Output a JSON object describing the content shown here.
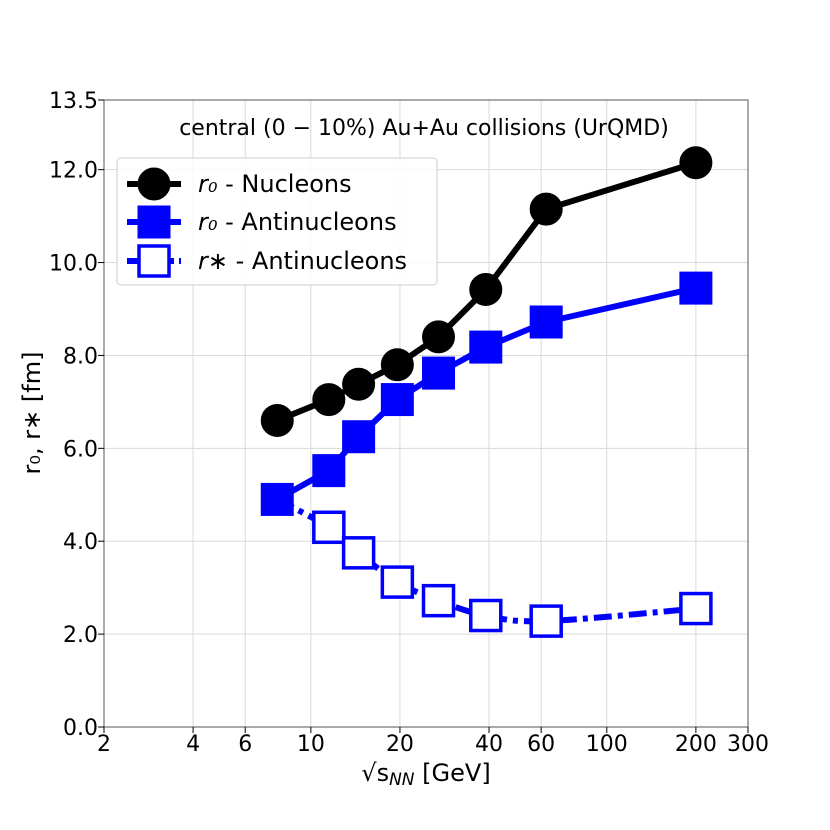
{
  "chart_data": {
    "type": "line",
    "title": "central (0 − 10%) Au+Au collisions (UrQMD)",
    "xlabel": "√s",
    "xlabel_sub": "NN",
    "xlabel_unit": "[GeV]",
    "ylabel": "r₀, r∗ [fm]",
    "xscale": "log",
    "xlim": [
      2,
      300
    ],
    "ylim": [
      0,
      13.5
    ],
    "xticks": [
      2,
      4,
      6,
      10,
      20,
      40,
      60,
      100,
      200,
      300
    ],
    "xtick_labels": [
      "2",
      "4",
      "6",
      "10",
      "20",
      "40",
      "60",
      "100",
      "200",
      "300"
    ],
    "yticks": [
      0,
      2,
      4,
      6,
      8,
      10,
      12,
      13.5
    ],
    "ytick_labels": [
      "0.0",
      "2.0",
      "4.0",
      "6.0",
      "8.0",
      "10.0",
      "12.0",
      "13.5"
    ],
    "grid": true,
    "legend_position": "upper-left",
    "series": [
      {
        "name": "r₀ - Nucleons",
        "legend_symbol": "r₀",
        "legend_rest": " - Nucleons",
        "color": "#000000",
        "line": "solid",
        "marker": "circle",
        "marker_fill": "filled",
        "x": [
          7.7,
          11.5,
          14.5,
          19.6,
          27,
          39,
          62.4,
          200
        ],
        "y": [
          6.6,
          7.05,
          7.38,
          7.8,
          8.4,
          9.42,
          11.15,
          12.15
        ]
      },
      {
        "name": "r₀ - Antinucleons",
        "legend_symbol": "r₀",
        "legend_rest": " - Antinucleons",
        "color": "#0000ff",
        "line": "solid",
        "marker": "square",
        "marker_fill": "filled",
        "x": [
          7.7,
          11.5,
          14.5,
          19.6,
          27,
          39,
          62.4,
          200
        ],
        "y": [
          4.9,
          5.52,
          6.25,
          7.05,
          7.62,
          8.18,
          8.72,
          9.45
        ]
      },
      {
        "name": "r∗ - Antinucleons",
        "legend_symbol": "r∗",
        "legend_rest": " - Antinucleons",
        "color": "#0000ff",
        "line": "dashdot",
        "marker": "square",
        "marker_fill": "open",
        "x": [
          11.5,
          14.5,
          19.6,
          27,
          39,
          62.4,
          200
        ],
        "y": [
          4.3,
          3.75,
          3.12,
          2.72,
          2.4,
          2.28,
          2.55
        ],
        "curve_x": [
          7.7,
          11.5,
          14.5,
          19.6,
          27,
          39,
          62.4,
          200
        ],
        "curve_y": [
          4.9,
          4.3,
          3.75,
          3.12,
          2.72,
          2.4,
          2.28,
          2.55
        ]
      }
    ]
  }
}
